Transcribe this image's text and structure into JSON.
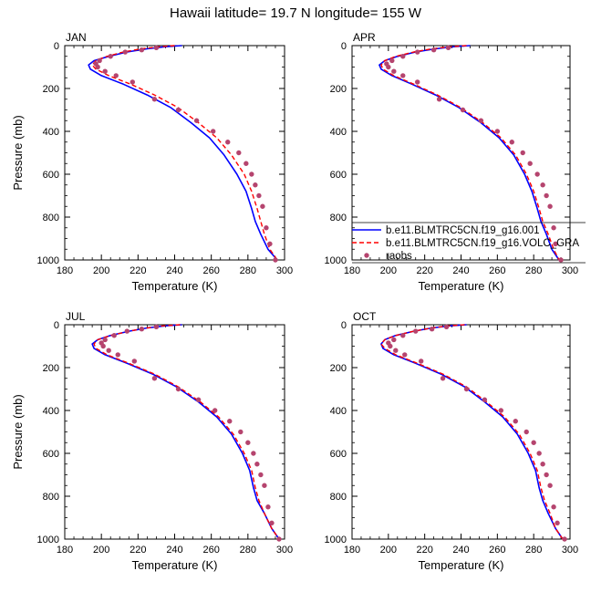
{
  "title": "Hawaii  latitude= 19.7 N longitude= 155 W",
  "chart_data": [
    {
      "type": "line",
      "panel": "JAN",
      "xlabel": "Temperature (K)",
      "ylabel": "Pressure (mb)",
      "xlim": [
        180,
        300
      ],
      "ylim": [
        1000,
        0
      ],
      "xticks": [
        180,
        200,
        220,
        240,
        260,
        280,
        300
      ],
      "yticks": [
        0,
        200,
        400,
        600,
        800,
        1000
      ],
      "series": [
        {
          "name": "b.e11.BLMTRC5CN.f19_g16.001",
          "style": "solid",
          "color": "#0000ff",
          "x": [
            244,
            235,
            225,
            214,
            204,
            196,
            193,
            194,
            200,
            212,
            225,
            238,
            249,
            259,
            267,
            274,
            279,
            282,
            284,
            287,
            291,
            296
          ],
          "y": [
            0,
            5,
            15,
            30,
            50,
            70,
            90,
            110,
            140,
            180,
            230,
            290,
            360,
            430,
            510,
            600,
            680,
            760,
            820,
            880,
            950,
            1000
          ]
        },
        {
          "name": "b.e11.BLMTRC5CN.f19_g16.VOLC_GRA",
          "style": "dashed",
          "color": "#ff0000",
          "x": [
            240,
            232,
            222,
            212,
            203,
            197,
            195,
            197,
            204,
            216,
            229,
            242,
            253,
            263,
            271,
            278,
            282,
            285,
            287,
            289,
            292,
            296
          ],
          "y": [
            0,
            5,
            15,
            30,
            50,
            70,
            90,
            110,
            140,
            180,
            230,
            290,
            360,
            430,
            510,
            600,
            680,
            760,
            820,
            880,
            950,
            1000
          ]
        },
        {
          "name": "raobs",
          "style": "markers",
          "color": "#b5446e",
          "x": [
            230,
            222,
            213,
            205,
            199,
            197,
            198,
            202,
            208,
            217,
            229,
            242,
            252,
            261,
            269,
            275,
            279,
            282,
            284,
            286,
            288,
            290,
            292,
            295
          ],
          "y": [
            10,
            20,
            30,
            50,
            70,
            85,
            100,
            120,
            140,
            170,
            250,
            300,
            350,
            400,
            450,
            500,
            550,
            600,
            650,
            700,
            750,
            850,
            925,
            1000
          ]
        }
      ]
    },
    {
      "type": "line",
      "panel": "APR",
      "xlabel": "Temperature (K)",
      "ylabel": "",
      "xlim": [
        180,
        300
      ],
      "ylim": [
        1000,
        0
      ],
      "xticks": [
        180,
        200,
        220,
        240,
        260,
        280,
        300
      ],
      "yticks": [
        0,
        200,
        400,
        600,
        800,
        1000
      ],
      "series": [
        {
          "name": "b.e11.BLMTRC5CN.f19_g16.001",
          "style": "solid",
          "color": "#0000ff",
          "x": [
            245,
            236,
            226,
            215,
            205,
            198,
            195,
            196,
            202,
            213,
            226,
            239,
            251,
            261,
            269,
            275,
            279,
            282,
            284,
            287,
            290,
            294
          ],
          "y": [
            0,
            5,
            15,
            30,
            50,
            70,
            90,
            110,
            140,
            180,
            230,
            290,
            360,
            430,
            510,
            600,
            680,
            760,
            820,
            880,
            950,
            1000
          ]
        },
        {
          "name": "b.e11.BLMTRC5CN.f19_g16.VOLC_GRA",
          "style": "dashed",
          "color": "#ff0000",
          "x": [
            243,
            234,
            224,
            214,
            204,
            198,
            196,
            197,
            203,
            214,
            227,
            240,
            252,
            262,
            270,
            276,
            280,
            283,
            285,
            288,
            291,
            294
          ],
          "y": [
            0,
            5,
            15,
            30,
            50,
            70,
            90,
            110,
            140,
            180,
            230,
            290,
            360,
            430,
            510,
            600,
            680,
            760,
            820,
            880,
            950,
            1000
          ]
        },
        {
          "name": "raobs",
          "style": "markers",
          "color": "#b5446e",
          "x": [
            233,
            225,
            216,
            208,
            202,
            199,
            200,
            203,
            208,
            216,
            228,
            241,
            251,
            260,
            268,
            274,
            278,
            282,
            285,
            287,
            289,
            291,
            292,
            295
          ],
          "y": [
            10,
            20,
            30,
            50,
            70,
            85,
            100,
            120,
            140,
            170,
            250,
            300,
            350,
            400,
            450,
            500,
            550,
            600,
            650,
            700,
            750,
            850,
            925,
            1000
          ]
        }
      ]
    },
    {
      "type": "line",
      "panel": "JUL",
      "xlabel": "Temperature (K)",
      "ylabel": "Pressure (mb)",
      "xlim": [
        180,
        300
      ],
      "ylim": [
        1000,
        0
      ],
      "xticks": [
        180,
        200,
        220,
        240,
        260,
        280,
        300
      ],
      "yticks": [
        0,
        200,
        400,
        600,
        800,
        1000
      ],
      "series": [
        {
          "name": "b.e11.BLMTRC5CN.f19_g16.001",
          "style": "solid",
          "color": "#0000ff",
          "x": [
            244,
            235,
            225,
            215,
            205,
            198,
            195,
            196,
            202,
            214,
            228,
            241,
            253,
            263,
            271,
            277,
            281,
            283,
            285,
            289,
            293,
            297
          ],
          "y": [
            0,
            5,
            15,
            30,
            50,
            70,
            90,
            110,
            140,
            180,
            230,
            290,
            360,
            430,
            510,
            600,
            680,
            760,
            820,
            880,
            950,
            1000
          ]
        },
        {
          "name": "b.e11.BLMTRC5CN.f19_g16.VOLC_GRA",
          "style": "dashed",
          "color": "#ff0000",
          "x": [
            243,
            234,
            225,
            215,
            205,
            198,
            196,
            197,
            203,
            215,
            229,
            242,
            254,
            264,
            272,
            278,
            282,
            284,
            286,
            289,
            293,
            297
          ],
          "y": [
            0,
            5,
            15,
            30,
            50,
            70,
            90,
            110,
            140,
            180,
            230,
            290,
            360,
            430,
            510,
            600,
            680,
            760,
            820,
            880,
            950,
            1000
          ]
        },
        {
          "name": "raobs",
          "style": "markers",
          "color": "#b5446e",
          "x": [
            230,
            222,
            214,
            207,
            202,
            200,
            201,
            204,
            209,
            218,
            229,
            242,
            253,
            262,
            270,
            276,
            280,
            283,
            285,
            287,
            289,
            291,
            293,
            297
          ],
          "y": [
            10,
            20,
            30,
            50,
            70,
            85,
            100,
            120,
            140,
            170,
            250,
            300,
            350,
            400,
            450,
            500,
            550,
            600,
            650,
            700,
            750,
            850,
            925,
            1000
          ]
        }
      ]
    },
    {
      "type": "line",
      "panel": "OCT",
      "xlabel": "Temperature (K)",
      "ylabel": "",
      "xlim": [
        180,
        300
      ],
      "ylim": [
        1000,
        0
      ],
      "xticks": [
        180,
        200,
        220,
        240,
        260,
        280,
        300
      ],
      "yticks": [
        0,
        200,
        400,
        600,
        800,
        1000
      ],
      "series": [
        {
          "name": "b.e11.BLMTRC5CN.f19_g16.001",
          "style": "solid",
          "color": "#0000ff",
          "x": [
            243,
            234,
            224,
            214,
            204,
            198,
            196,
            197,
            203,
            215,
            229,
            242,
            253,
            263,
            271,
            277,
            281,
            283,
            285,
            288,
            292,
            296
          ],
          "y": [
            0,
            5,
            15,
            30,
            50,
            70,
            90,
            110,
            140,
            180,
            230,
            290,
            360,
            430,
            510,
            600,
            680,
            760,
            820,
            880,
            950,
            1000
          ]
        },
        {
          "name": "b.e11.BLMTRC5CN.f19_g16.VOLC_GRA",
          "style": "dashed",
          "color": "#ff0000",
          "x": [
            242,
            233,
            224,
            214,
            204,
            198,
            196,
            198,
            204,
            216,
            230,
            243,
            254,
            264,
            272,
            278,
            282,
            284,
            286,
            289,
            292,
            296
          ],
          "y": [
            0,
            5,
            15,
            30,
            50,
            70,
            90,
            110,
            140,
            180,
            230,
            290,
            360,
            430,
            510,
            600,
            680,
            760,
            820,
            880,
            950,
            1000
          ]
        },
        {
          "name": "raobs",
          "style": "markers",
          "color": "#b5446e",
          "x": [
            232,
            224,
            215,
            208,
            203,
            200,
            201,
            204,
            209,
            218,
            230,
            243,
            253,
            262,
            270,
            276,
            280,
            283,
            285,
            287,
            289,
            291,
            293,
            297
          ],
          "y": [
            10,
            20,
            30,
            50,
            70,
            85,
            100,
            120,
            140,
            170,
            250,
            300,
            350,
            400,
            450,
            500,
            550,
            600,
            650,
            700,
            750,
            850,
            925,
            1000
          ]
        }
      ]
    }
  ],
  "legend": [
    {
      "label": "b.e11.BLMTRC5CN.f19_g16.001",
      "style": "solid",
      "color": "#0000ff"
    },
    {
      "label": "b.e11.BLMTRC5CN.f19_g16.VOLC_GRA",
      "style": "dashed",
      "color": "#ff0000"
    },
    {
      "label": "raobs",
      "style": "markers",
      "color": "#b5446e"
    }
  ]
}
